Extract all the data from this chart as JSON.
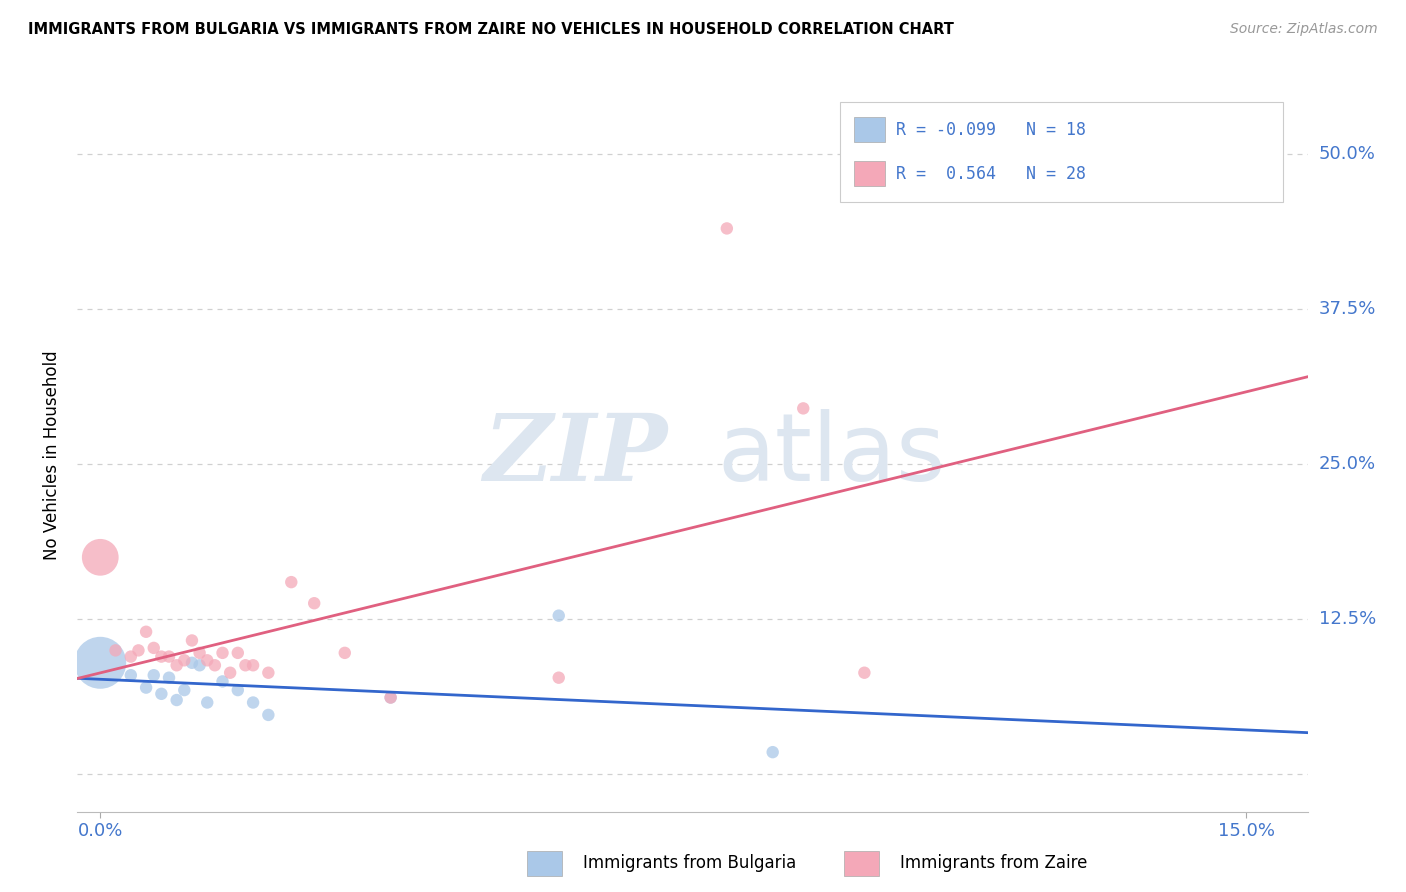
{
  "title": "IMMIGRANTS FROM BULGARIA VS IMMIGRANTS FROM ZAIRE NO VEHICLES IN HOUSEHOLD CORRELATION CHART",
  "source": "Source: ZipAtlas.com",
  "xlabel_ticks": [
    "0.0%",
    "15.0%"
  ],
  "ylabel_label": "No Vehicles in Household",
  "ylabel_ticks": [
    0.0,
    0.125,
    0.25,
    0.375,
    0.5
  ],
  "ylabel_tick_labels": [
    "",
    "12.5%",
    "25.0%",
    "37.5%",
    "50.0%"
  ],
  "xlim": [
    -0.003,
    0.158
  ],
  "ylim": [
    -0.03,
    0.545
  ],
  "legend_r_bulgaria": "-0.099",
  "legend_n_bulgaria": "18",
  "legend_r_zaire": "0.564",
  "legend_n_zaire": "28",
  "color_bulgaria": "#aac8e8",
  "color_zaire": "#f4a8b8",
  "line_color_bulgaria": "#3366cc",
  "line_color_zaire": "#e06080",
  "watermark_zip": "ZIP",
  "watermark_atlas": "atlas",
  "grid_color": "#d0d0d0",
  "background_color": "#ffffff",
  "tick_color": "#4477cc",
  "bulgaria_x": [
    0.0,
    0.004,
    0.006,
    0.007,
    0.008,
    0.009,
    0.01,
    0.011,
    0.012,
    0.013,
    0.014,
    0.016,
    0.018,
    0.02,
    0.022,
    0.038,
    0.06,
    0.088
  ],
  "bulgaria_y": [
    0.09,
    0.08,
    0.07,
    0.08,
    0.065,
    0.078,
    0.06,
    0.068,
    0.09,
    0.088,
    0.058,
    0.075,
    0.068,
    0.058,
    0.048,
    0.062,
    0.128,
    0.018
  ],
  "bulgaria_size": [
    1400,
    80,
    80,
    80,
    80,
    80,
    80,
    80,
    80,
    80,
    80,
    80,
    80,
    80,
    80,
    80,
    80,
    80
  ],
  "zaire_x": [
    0.0,
    0.002,
    0.004,
    0.005,
    0.006,
    0.007,
    0.008,
    0.009,
    0.01,
    0.011,
    0.012,
    0.013,
    0.014,
    0.015,
    0.016,
    0.017,
    0.018,
    0.019,
    0.02,
    0.022,
    0.025,
    0.028,
    0.032,
    0.038,
    0.06,
    0.082,
    0.092,
    0.1
  ],
  "zaire_y": [
    0.175,
    0.1,
    0.095,
    0.1,
    0.115,
    0.102,
    0.095,
    0.095,
    0.088,
    0.092,
    0.108,
    0.098,
    0.092,
    0.088,
    0.098,
    0.082,
    0.098,
    0.088,
    0.088,
    0.082,
    0.155,
    0.138,
    0.098,
    0.062,
    0.078,
    0.44,
    0.295,
    0.082
  ],
  "zaire_size": [
    700,
    80,
    80,
    80,
    80,
    80,
    80,
    80,
    80,
    80,
    80,
    80,
    80,
    80,
    80,
    80,
    80,
    80,
    80,
    80,
    80,
    80,
    80,
    80,
    80,
    80,
    80,
    80
  ]
}
